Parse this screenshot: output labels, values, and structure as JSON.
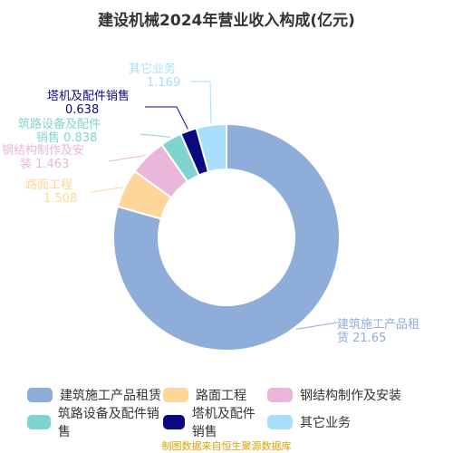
{
  "chart_data": {
    "type": "pie",
    "title": "建设机械2024年营业收入构成(亿元)",
    "source": "制图数据来自恒生聚源数据库",
    "slices": [
      {
        "name": "建筑施工产品租赁",
        "value": 21.65,
        "color": "#8fadd9",
        "label_lines": [
          "建筑施工产品租",
          "赁 21.65"
        ]
      },
      {
        "name": "路面工程",
        "value": 1.508,
        "color": "#ffd699",
        "label_lines": [
          "路面工程",
          "1.508"
        ]
      },
      {
        "name": "钢结构制作及安装",
        "value": 1.463,
        "color": "#e8b7d9",
        "label_lines": [
          "钢结构制作及安",
          "装 1.463"
        ]
      },
      {
        "name": "筑路设备及配件销售",
        "value": 0.838,
        "color": "#80d4d0",
        "label_lines": [
          "筑路设备及配件",
          "销售 0.838"
        ]
      },
      {
        "name": "塔机及配件销售",
        "value": 0.638,
        "color": "#0a0a80",
        "label_lines": [
          "塔机及配件销售",
          "0.638"
        ]
      },
      {
        "name": "其它业务",
        "value": 1.169,
        "color": "#a8defc",
        "label_lines": [
          "其它业务",
          "1.169"
        ]
      }
    ],
    "legend_rows": [
      [
        "建筑施工产品租赁",
        "路面工程",
        "钢结构制作及安装"
      ],
      [
        "筑路设备及配件销售",
        "塔机及配件销售",
        "其它业务"
      ]
    ]
  }
}
